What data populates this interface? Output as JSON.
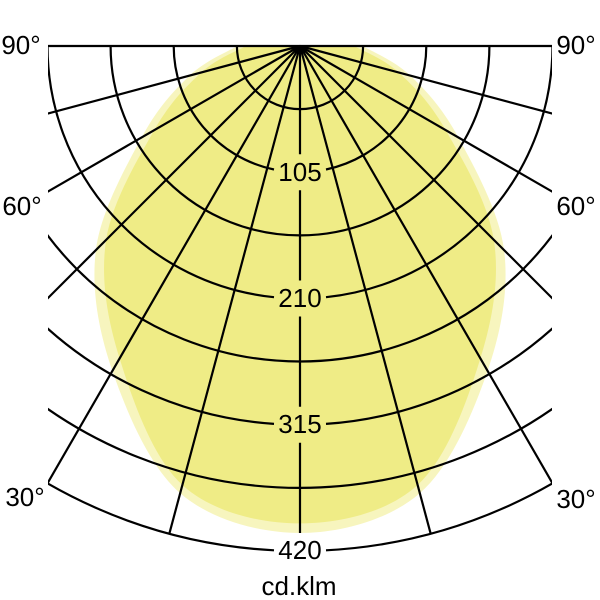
{
  "title": "",
  "unit_label": "cd.klm",
  "labels": {
    "angle_left": [
      "90°",
      "60°",
      "30°"
    ],
    "angle_right": [
      "90°",
      "60°",
      "30°"
    ],
    "radial": [
      "105",
      "210",
      "315",
      "420"
    ],
    "unit": "cd.klm"
  },
  "colors": {
    "background": "#FFFFFF",
    "grid": "#000000",
    "text": "#000000",
    "fill_outer": "#F7F5BE",
    "fill_inner": "#EFEC86"
  },
  "chart_data": {
    "type": "area",
    "subtype": "polar_photometric_light_distribution",
    "title": "",
    "axis_label": "cd.klm",
    "unit": "cd/klm",
    "angle_gridlines_deg": [
      0,
      15,
      30,
      45,
      60,
      75,
      90
    ],
    "angle_tick_labels_deg": [
      90,
      60,
      30
    ],
    "radial_gridlines": [
      52.5,
      105,
      157.5,
      210,
      262.5,
      315,
      367.5,
      420
    ],
    "radial_tick_labels": [
      105,
      210,
      315,
      420
    ],
    "radial_max": 420,
    "grid_on": true,
    "symmetric_about_vertical": true,
    "series": [
      {
        "name": "light-distribution-outer",
        "fill": "#F7F5BE",
        "angles_deg": [
          0,
          15,
          30,
          45,
          60,
          75,
          90
        ],
        "values_cd_per_klm": [
          405,
          385,
          312,
          240,
          152,
          95,
          52
        ]
      },
      {
        "name": "light-distribution-inner",
        "fill": "#EFEC86",
        "angles_deg": [
          0,
          15,
          30,
          45,
          60,
          75,
          90
        ],
        "values_cd_per_klm": [
          397,
          378,
          300,
          228,
          140,
          85,
          45
        ]
      }
    ]
  }
}
